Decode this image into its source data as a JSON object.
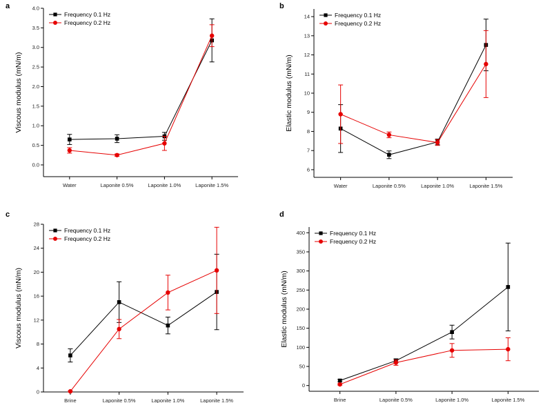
{
  "colors": {
    "series0": "#000000",
    "series1": "#e60000",
    "axis": "#000000"
  },
  "chart_data": [
    {
      "panel": "a",
      "type": "line",
      "ylabel": "Viscous modulus (mN/m)",
      "xlabel": "",
      "categories": [
        "Water",
        "Laponite 0.5%",
        "Laponite 1.0%",
        "Laponite 1.5%"
      ],
      "ylim": [
        -0.3,
        4.0
      ],
      "yticks": [
        0.0,
        0.5,
        1.0,
        1.5,
        2.0,
        2.5,
        3.0,
        3.5,
        4.0
      ],
      "ytick_labels": [
        "0.0",
        "0.5",
        "1.0",
        "1.5",
        "2.0",
        "2.5",
        "3.0",
        "3.5",
        "4.0"
      ],
      "legend": "top-left",
      "series": [
        {
          "name": "Frequency 0.1 Hz",
          "values": [
            0.65,
            0.67,
            0.73,
            3.18
          ],
          "errors": [
            0.13,
            0.1,
            0.1,
            0.55
          ]
        },
        {
          "name": "Frequency 0.2 Hz",
          "values": [
            0.37,
            0.25,
            0.55,
            3.3
          ],
          "errors": [
            0.07,
            0.03,
            0.18,
            0.28
          ]
        }
      ]
    },
    {
      "panel": "b",
      "type": "line",
      "ylabel": "Elastic modulus (mN/m)",
      "xlabel": "",
      "categories": [
        "Water",
        "Laponite 0.5%",
        "Laponite 1.0%",
        "Laponite 1.5%"
      ],
      "ylim": [
        5.6,
        14.4
      ],
      "yticks": [
        6,
        7,
        8,
        9,
        10,
        11,
        12,
        13,
        14
      ],
      "ytick_labels": [
        "6",
        "7",
        "8",
        "9",
        "10",
        "11",
        "12",
        "13",
        "14"
      ],
      "legend": "top-left",
      "series": [
        {
          "name": "Frequency 0.1 Hz",
          "values": [
            8.15,
            6.78,
            7.45,
            12.52
          ],
          "errors": [
            1.25,
            0.2,
            0.15,
            1.35
          ]
        },
        {
          "name": "Frequency 0.2 Hz",
          "values": [
            8.9,
            7.82,
            7.42,
            11.52
          ],
          "errors": [
            1.53,
            0.15,
            0.15,
            1.75
          ]
        }
      ]
    },
    {
      "panel": "c",
      "type": "line",
      "ylabel": "Viscous modulus (mN/m)",
      "xlabel": "",
      "categories": [
        "Brine",
        "Laponite 0.5%",
        "Laponite 1.0%",
        "Laponite 1.5%"
      ],
      "ylim": [
        0,
        28
      ],
      "yticks": [
        0,
        4,
        8,
        12,
        16,
        20,
        24,
        28
      ],
      "ytick_labels": [
        "0",
        "4",
        "8",
        "12",
        "16",
        "20",
        "24",
        "28"
      ],
      "legend": "top-left",
      "series": [
        {
          "name": "Frequency 0.1 Hz",
          "values": [
            6.1,
            15.0,
            11.1,
            16.7
          ],
          "errors": [
            1.1,
            3.4,
            1.4,
            6.3
          ]
        },
        {
          "name": "Frequency 0.2 Hz",
          "values": [
            0.1,
            10.5,
            16.6,
            20.3
          ],
          "errors": [
            0.1,
            1.6,
            2.9,
            7.2
          ]
        }
      ]
    },
    {
      "panel": "d",
      "type": "line",
      "ylabel": "Elastic modulus (mN/m)",
      "xlabel": "",
      "categories": [
        "Brine",
        "Laponite 0.5%",
        "Laponite 1.0%",
        "Laponite 1.5%"
      ],
      "ylim": [
        -15,
        415
      ],
      "yticks": [
        0,
        50,
        100,
        150,
        200,
        250,
        300,
        350,
        400
      ],
      "ytick_labels": [
        "0",
        "50",
        "100",
        "150",
        "200",
        "250",
        "300",
        "350",
        "400"
      ],
      "legend": "top-left",
      "series": [
        {
          "name": "Frequency 0.1 Hz",
          "values": [
            13,
            65,
            140,
            258
          ],
          "errors": [
            3,
            5,
            18,
            115
          ]
        },
        {
          "name": "Frequency 0.2 Hz",
          "values": [
            3,
            60,
            92,
            95
          ],
          "errors": [
            2,
            7,
            18,
            30
          ]
        }
      ]
    }
  ]
}
